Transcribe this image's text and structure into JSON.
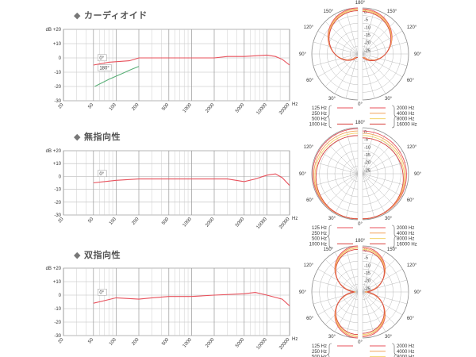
{
  "chart_data": [
    {
      "type": "line",
      "title": "カーディオイド",
      "bullet": "◆",
      "ylabel": "dB",
      "xlabel": "Hz",
      "xscale": "log",
      "xlim": [
        20,
        20000
      ],
      "ylim": [
        -30,
        20
      ],
      "y_ticks": [
        "+20",
        "+10",
        "0",
        "-10",
        "-20",
        "-30"
      ],
      "x_ticks": [
        20,
        50,
        100,
        200,
        500,
        1000,
        2000,
        5000,
        10000,
        20000
      ],
      "x_minor": [
        30,
        40,
        60,
        70,
        80,
        90,
        300,
        400,
        600,
        700,
        800,
        900,
        3000,
        4000,
        6000,
        7000,
        8000,
        9000,
        15000
      ],
      "annotations": [
        {
          "text": "0°",
          "x": 60,
          "y": -1
        },
        {
          "text": "180°",
          "x": 60,
          "y": -8
        }
      ],
      "series": [
        {
          "color": "#e8505b",
          "points": [
            [
              50,
              -5
            ],
            [
              80,
              -3
            ],
            [
              150,
              -2
            ],
            [
              200,
              0
            ],
            [
              500,
              0
            ],
            [
              1000,
              0
            ],
            [
              2000,
              0
            ],
            [
              3000,
              1
            ],
            [
              5000,
              1
            ],
            [
              10000,
              2
            ],
            [
              13000,
              1
            ],
            [
              16000,
              -1
            ],
            [
              20000,
              -5
            ]
          ]
        },
        {
          "color": "#5ab078",
          "points": [
            [
              52,
              -20
            ],
            [
              80,
              -15
            ],
            [
              120,
              -11
            ],
            [
              160,
              -8
            ],
            [
              200,
              -6
            ]
          ]
        }
      ],
      "polar": {
        "angle_labels": [
          "180°",
          "150°",
          "120°",
          "90°",
          "60°",
          "30°",
          "0°"
        ],
        "db_labels": [
          "0",
          "-5",
          "-10",
          "-15",
          "-20",
          "-25"
        ],
        "legend_left": [
          "125 Hz",
          "250 Hz",
          "500 Hz",
          "1000 Hz"
        ],
        "legend_right": [
          "2000 Hz",
          "4000 Hz",
          "8000 Hz",
          "16000 Hz"
        ],
        "kind": "cardioid",
        "colors": [
          "#e8505b",
          "#f2a25b",
          "#f3d26a",
          "#d8403d"
        ]
      }
    },
    {
      "type": "line",
      "title": "無指向性",
      "bullet": "◆",
      "ylabel": "dB",
      "xlabel": "Hz",
      "xscale": "log",
      "xlim": [
        20,
        20000
      ],
      "ylim": [
        -30,
        20
      ],
      "y_ticks": [
        "+20",
        "+10",
        "0",
        "-10",
        "-20",
        "-30"
      ],
      "x_ticks": [
        20,
        50,
        100,
        200,
        500,
        1000,
        2000,
        5000,
        10000,
        20000
      ],
      "x_minor": [
        30,
        40,
        60,
        70,
        80,
        90,
        300,
        400,
        600,
        700,
        800,
        900,
        3000,
        4000,
        6000,
        7000,
        8000,
        9000,
        15000
      ],
      "annotations": [
        {
          "text": "0°",
          "x": 60,
          "y": 1
        }
      ],
      "series": [
        {
          "color": "#e8505b",
          "points": [
            [
              50,
              -5
            ],
            [
              100,
              -3
            ],
            [
              200,
              -2
            ],
            [
              500,
              -2
            ],
            [
              1000,
              -2
            ],
            [
              3000,
              -2
            ],
            [
              5000,
              -4
            ],
            [
              7000,
              -2
            ],
            [
              10000,
              1
            ],
            [
              13000,
              2
            ],
            [
              16000,
              -1
            ],
            [
              20000,
              -7
            ]
          ]
        }
      ],
      "polar": {
        "angle_labels": [
          "180°",
          "120°",
          "90°",
          "60°",
          "30°",
          "0°"
        ],
        "db_labels": [
          "0",
          "-5",
          "-10",
          "-15",
          "-20",
          "-25"
        ],
        "legend_left": [
          "125 Hz",
          "250 Hz",
          "500 Hz",
          "1000 Hz"
        ],
        "legend_right": [
          "2000 Hz",
          "4000 Hz",
          "8000 Hz",
          "16000 Hz"
        ],
        "kind": "omni",
        "colors": [
          "#e8505b",
          "#f2a25b",
          "#f3d26a",
          "#d8403d"
        ]
      }
    },
    {
      "type": "line",
      "title": "双指向性",
      "bullet": "◆",
      "ylabel": "dB",
      "xlabel": "Hz",
      "xscale": "log",
      "xlim": [
        20,
        20000
      ],
      "ylim": [
        -30,
        20
      ],
      "y_ticks": [
        "+20",
        "+10",
        "0",
        "-10",
        "-20",
        "-30"
      ],
      "x_ticks": [
        20,
        50,
        100,
        200,
        500,
        1000,
        2000,
        5000,
        10000,
        20000
      ],
      "x_minor": [
        30,
        40,
        60,
        70,
        80,
        90,
        300,
        400,
        600,
        700,
        800,
        900,
        3000,
        4000,
        6000,
        7000,
        8000,
        9000,
        15000
      ],
      "annotations": [
        {
          "text": "0°",
          "x": 60,
          "y": 1
        }
      ],
      "series": [
        {
          "color": "#e8505b",
          "points": [
            [
              50,
              -6
            ],
            [
              100,
              -2
            ],
            [
              200,
              -3
            ],
            [
              300,
              -2
            ],
            [
              500,
              -1
            ],
            [
              1000,
              -1
            ],
            [
              2000,
              0
            ],
            [
              5000,
              1
            ],
            [
              7000,
              2
            ],
            [
              10000,
              0
            ],
            [
              16000,
              -3
            ],
            [
              20000,
              -8
            ]
          ]
        }
      ],
      "polar": {
        "angle_labels": [
          "180°",
          "150°",
          "120°",
          "90°",
          "60°",
          "30°",
          "0°"
        ],
        "db_labels": [
          "0",
          "-5",
          "-10",
          "-15",
          "-20",
          "-25"
        ],
        "legend_left": [
          "125 Hz",
          "250 Hz",
          "500 Hz",
          "1000 Hz"
        ],
        "legend_right": [
          "2000 Hz",
          "4000 Hz",
          "8000 Hz",
          "16000 Hz"
        ],
        "kind": "figure8",
        "colors": [
          "#e8505b",
          "#f2a25b",
          "#f3d26a",
          "#d8403d"
        ]
      }
    }
  ]
}
